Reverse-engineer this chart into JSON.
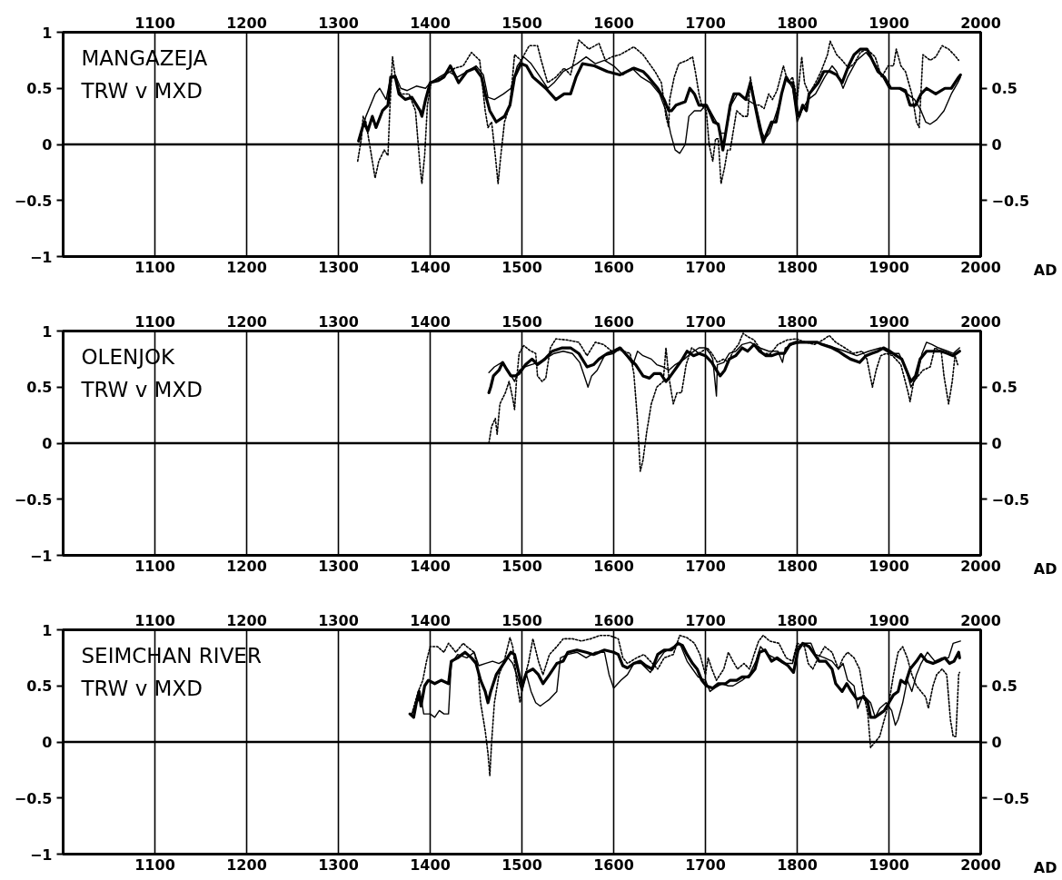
{
  "chart_data": [
    {
      "type": "line",
      "title": "MANGAZEJA",
      "subtitle": "TRW v MXD",
      "xlabel": "AD",
      "xlim": [
        1000,
        2000
      ],
      "xticks": [
        1100,
        1200,
        1300,
        1400,
        1500,
        1600,
        1700,
        1800,
        1900,
        2000
      ],
      "x2lim": [
        1000,
        2000
      ],
      "x2ticks": [
        1100,
        1200,
        1300,
        1400,
        1500,
        1600,
        1700,
        1800,
        1900,
        2000
      ],
      "ylim": [
        -1,
        1
      ],
      "yticks": [
        -1,
        -0.5,
        0,
        0.5,
        1
      ],
      "y2lim": [
        -1,
        1
      ],
      "y2ticks": [
        -0.5,
        0,
        0.5
      ],
      "grid": "x",
      "ref_lines": [
        {
          "axis": "y",
          "value": 0
        }
      ],
      "series": [
        {
          "color": "#000000",
          "line_style": "solid",
          "x": [
            1322,
            1328,
            1332,
            1337,
            1341,
            1348,
            1354,
            1357,
            1362,
            1366,
            1373,
            1380,
            1389,
            1391,
            1395,
            1400,
            1409,
            1415,
            1422,
            1431,
            1440,
            1449,
            1456,
            1460,
            1465,
            1472,
            1481,
            1487,
            1492,
            1499,
            1505,
            1512,
            1519,
            1526,
            1537,
            1546,
            1553,
            1559,
            1566,
            1579,
            1593,
            1607,
            1622,
            1632,
            1638,
            1648,
            1655,
            1660,
            1663,
            1668,
            1678,
            1683,
            1688,
            1693,
            1701,
            1704,
            1709,
            1714,
            1717,
            1719,
            1722,
            1727,
            1731,
            1737,
            1744,
            1749,
            1754,
            1759,
            1763,
            1767,
            1772,
            1777,
            1783,
            1788,
            1792,
            1795,
            1800,
            1802,
            1806,
            1810,
            1813,
            1823,
            1829,
            1836,
            1843,
            1849,
            1856,
            1862,
            1869,
            1876,
            1882,
            1888,
            1895,
            1902,
            1912,
            1918,
            1923,
            1929,
            1935,
            1941,
            1951,
            1961,
            1968,
            1976,
            1978
          ],
          "values": [
            0.03,
            0.2,
            0.12,
            0.25,
            0.15,
            0.3,
            0.35,
            0.6,
            0.6,
            0.45,
            0.4,
            0.42,
            0.3,
            0.25,
            0.4,
            0.55,
            0.57,
            0.6,
            0.7,
            0.55,
            0.65,
            0.68,
            0.6,
            0.45,
            0.3,
            0.2,
            0.25,
            0.35,
            0.6,
            0.72,
            0.7,
            0.6,
            0.55,
            0.5,
            0.4,
            0.45,
            0.45,
            0.6,
            0.72,
            0.7,
            0.65,
            0.62,
            0.68,
            0.65,
            0.6,
            0.5,
            0.4,
            0.3,
            0.3,
            0.35,
            0.38,
            0.5,
            0.45,
            0.35,
            0.35,
            0.3,
            0.2,
            0.18,
            0.05,
            -0.05,
            0.1,
            0.35,
            0.45,
            0.45,
            0.4,
            0.55,
            0.35,
            0.15,
            0.02,
            0.1,
            0.2,
            0.2,
            0.45,
            0.6,
            0.55,
            0.55,
            0.3,
            0.25,
            0.35,
            0.3,
            0.45,
            0.55,
            0.65,
            0.65,
            0.62,
            0.55,
            0.7,
            0.8,
            0.85,
            0.85,
            0.75,
            0.65,
            0.6,
            0.5,
            0.5,
            0.48,
            0.35,
            0.35,
            0.45,
            0.5,
            0.45,
            0.5,
            0.5,
            0.6,
            0.62
          ]
        },
        {
          "color": "#000000",
          "line_style": "solid",
          "x": [
            1323,
            1330,
            1340,
            1345,
            1352,
            1357,
            1362,
            1368,
            1375,
            1385,
            1395,
            1400,
            1410,
            1420,
            1430,
            1440,
            1450,
            1458,
            1463,
            1470,
            1480,
            1488,
            1495,
            1502,
            1510,
            1520,
            1528,
            1535,
            1545,
            1552,
            1560,
            1570,
            1580,
            1590,
            1600,
            1610,
            1620,
            1630,
            1640,
            1650,
            1657,
            1662,
            1667,
            1672,
            1678,
            1682,
            1688,
            1695,
            1700,
            1705,
            1712,
            1717,
            1722,
            1728,
            1735,
            1745,
            1755,
            1762,
            1765,
            1770,
            1780,
            1788,
            1795,
            1800,
            1805,
            1812,
            1820,
            1830,
            1838,
            1843,
            1850,
            1855,
            1865,
            1875,
            1882,
            1890,
            1900,
            1910,
            1920,
            1928,
            1935,
            1940,
            1945,
            1952,
            1960,
            1968,
            1975,
            1978
          ],
          "values": [
            0.05,
            0.25,
            0.45,
            0.5,
            0.4,
            0.6,
            0.62,
            0.5,
            0.48,
            0.52,
            0.5,
            0.55,
            0.6,
            0.65,
            0.6,
            0.65,
            0.7,
            0.62,
            0.42,
            0.4,
            0.45,
            0.5,
            0.7,
            0.78,
            0.72,
            0.6,
            0.5,
            0.55,
            0.65,
            0.68,
            0.72,
            0.78,
            0.72,
            0.75,
            0.7,
            0.62,
            0.68,
            0.6,
            0.55,
            0.45,
            0.3,
            0.1,
            -0.05,
            -0.08,
            0.0,
            0.25,
            0.3,
            0.3,
            0.35,
            0.3,
            0.2,
            0.1,
            0.1,
            0.35,
            0.45,
            0.4,
            0.35,
            0.1,
            0.05,
            0.1,
            0.35,
            0.6,
            0.5,
            0.2,
            0.3,
            0.4,
            0.45,
            0.6,
            0.7,
            0.65,
            0.5,
            0.6,
            0.75,
            0.82,
            0.75,
            0.65,
            0.5,
            0.5,
            0.45,
            0.4,
            0.3,
            0.2,
            0.18,
            0.22,
            0.3,
            0.45,
            0.55,
            0.6
          ]
        },
        {
          "color": "#000000",
          "line_style": "dotted",
          "x": [
            1321,
            1325,
            1327,
            1330,
            1335,
            1340,
            1344,
            1350,
            1354,
            1356,
            1359,
            1362,
            1368,
            1377,
            1384,
            1389,
            1391,
            1394,
            1397,
            1401,
            1413,
            1427,
            1436,
            1445,
            1454,
            1460,
            1463,
            1467,
            1471,
            1474,
            1477,
            1481,
            1487,
            1492,
            1499,
            1508,
            1517,
            1521,
            1528,
            1537,
            1546,
            1553,
            1562,
            1573,
            1584,
            1591,
            1598,
            1607,
            1622,
            1632,
            1645,
            1652,
            1657,
            1660,
            1661,
            1666,
            1671,
            1680,
            1686,
            1689,
            1693,
            1696,
            1701,
            1704,
            1708,
            1711,
            1714,
            1717,
            1721,
            1724,
            1727,
            1731,
            1734,
            1741,
            1746,
            1749,
            1754,
            1759,
            1764,
            1769,
            1773,
            1778,
            1785,
            1790,
            1795,
            1800,
            1805,
            1808,
            1813,
            1820,
            1826,
            1833,
            1836,
            1843,
            1849,
            1856,
            1862,
            1869,
            1876,
            1885,
            1892,
            1899,
            1905,
            1908,
            1913,
            1918,
            1925,
            1930,
            1933,
            1937,
            1945,
            1951,
            1958,
            1965,
            1971,
            1976
          ],
          "values": [
            -0.15,
            0.05,
            0.25,
            0.2,
            -0.05,
            -0.3,
            -0.15,
            -0.05,
            -0.1,
            0.3,
            0.78,
            0.6,
            0.45,
            0.45,
            0.3,
            -0.2,
            -0.35,
            -0.1,
            0.35,
            0.55,
            0.6,
            0.68,
            0.7,
            0.82,
            0.75,
            0.3,
            0.15,
            0.2,
            -0.1,
            -0.35,
            -0.1,
            0.2,
            0.35,
            0.8,
            0.75,
            0.88,
            0.88,
            0.75,
            0.55,
            0.6,
            0.68,
            0.62,
            0.93,
            0.85,
            0.9,
            0.75,
            0.78,
            0.8,
            0.87,
            0.8,
            0.65,
            0.55,
            0.25,
            0.15,
            0.4,
            0.6,
            0.72,
            0.75,
            0.78,
            0.65,
            0.45,
            0.35,
            0.3,
            0.0,
            -0.15,
            0.05,
            0.05,
            -0.35,
            -0.2,
            -0.05,
            -0.05,
            0.15,
            0.3,
            0.25,
            0.25,
            0.6,
            0.35,
            0.35,
            0.32,
            0.45,
            0.4,
            0.48,
            0.7,
            0.55,
            0.6,
            0.4,
            0.78,
            0.55,
            0.45,
            0.55,
            0.65,
            0.8,
            0.92,
            0.8,
            0.75,
            0.68,
            0.72,
            0.82,
            0.85,
            0.78,
            0.6,
            0.7,
            0.7,
            0.85,
            0.7,
            0.65,
            0.45,
            0.2,
            0.15,
            0.8,
            0.75,
            0.78,
            0.88,
            0.85,
            0.8,
            0.75
          ]
        }
      ]
    },
    {
      "type": "line",
      "title": "OLENJOK",
      "subtitle": "TRW v MXD",
      "xlabel": "AD",
      "xlim": [
        1000,
        2000
      ],
      "xticks": [
        1100,
        1200,
        1300,
        1400,
        1500,
        1600,
        1700,
        1800,
        1900,
        2000
      ],
      "x2lim": [
        1000,
        2000
      ],
      "x2ticks": [
        1100,
        1200,
        1300,
        1400,
        1500,
        1600,
        1700,
        1800,
        1900,
        2000
      ],
      "ylim": [
        -1,
        1
      ],
      "yticks": [
        -1,
        -0.5,
        0,
        0.5,
        1
      ],
      "y2lim": [
        -1,
        1
      ],
      "y2ticks": [
        -0.5,
        0,
        0.5
      ],
      "grid": "x",
      "ref_lines": [
        {
          "axis": "y",
          "value": 0
        }
      ],
      "series": [
        {
          "color": "#000000",
          "line_style": "solid",
          "x": [
            1464,
            1466,
            1469,
            1475,
            1479,
            1484,
            1488,
            1493,
            1497,
            1504,
            1511,
            1517,
            1525,
            1533,
            1544,
            1553,
            1562,
            1571,
            1578,
            1584,
            1593,
            1600,
            1607,
            1618,
            1624,
            1632,
            1639,
            1644,
            1651,
            1657,
            1662,
            1669,
            1675,
            1680,
            1687,
            1693,
            1700,
            1707,
            1712,
            1716,
            1721,
            1726,
            1733,
            1740,
            1746,
            1753,
            1759,
            1766,
            1772,
            1779,
            1786,
            1792,
            1799,
            1812,
            1822,
            1827,
            1838,
            1845,
            1852,
            1858,
            1868,
            1875,
            1881,
            1888,
            1894,
            1901,
            1908,
            1914,
            1919,
            1924,
            1929,
            1934,
            1941,
            1947,
            1957,
            1964,
            1970,
            1977
          ],
          "values": [
            0.45,
            0.5,
            0.6,
            0.65,
            0.72,
            0.65,
            0.6,
            0.6,
            0.62,
            0.7,
            0.75,
            0.7,
            0.75,
            0.82,
            0.85,
            0.85,
            0.8,
            0.68,
            0.7,
            0.75,
            0.8,
            0.82,
            0.85,
            0.75,
            0.7,
            0.6,
            0.58,
            0.62,
            0.62,
            0.55,
            0.6,
            0.68,
            0.75,
            0.82,
            0.78,
            0.8,
            0.78,
            0.72,
            0.65,
            0.6,
            0.65,
            0.75,
            0.78,
            0.85,
            0.82,
            0.88,
            0.82,
            0.78,
            0.78,
            0.8,
            0.8,
            0.88,
            0.9,
            0.9,
            0.9,
            0.88,
            0.85,
            0.82,
            0.78,
            0.75,
            0.72,
            0.78,
            0.8,
            0.82,
            0.85,
            0.82,
            0.78,
            0.75,
            0.65,
            0.55,
            0.6,
            0.75,
            0.82,
            0.82,
            0.82,
            0.8,
            0.78,
            0.82
          ]
        },
        {
          "color": "#000000",
          "line_style": "solid",
          "x": [
            1464,
            1470,
            1478,
            1485,
            1492,
            1497,
            1503,
            1510,
            1518,
            1525,
            1535,
            1545,
            1555,
            1563,
            1568,
            1572,
            1576,
            1582,
            1590,
            1600,
            1608,
            1621,
            1626,
            1632,
            1641,
            1647,
            1654,
            1660,
            1667,
            1677,
            1684,
            1693,
            1700,
            1705,
            1708,
            1712,
            1713,
            1720,
            1726,
            1733,
            1740,
            1749,
            1759,
            1769,
            1779,
            1784,
            1787,
            1795,
            1805,
            1822,
            1838,
            1852,
            1865,
            1878,
            1891,
            1901,
            1911,
            1919,
            1924,
            1931,
            1936,
            1941,
            1947,
            1954,
            1964,
            1970,
            1977
          ],
          "values": [
            0.63,
            0.68,
            0.72,
            0.65,
            0.55,
            0.65,
            0.68,
            0.7,
            0.72,
            0.75,
            0.8,
            0.82,
            0.8,
            0.72,
            0.6,
            0.5,
            0.6,
            0.65,
            0.78,
            0.8,
            0.85,
            0.7,
            0.82,
            0.78,
            0.75,
            0.7,
            0.68,
            0.65,
            0.7,
            0.75,
            0.8,
            0.85,
            0.85,
            0.8,
            0.75,
            0.42,
            0.7,
            0.72,
            0.8,
            0.82,
            0.88,
            0.9,
            0.85,
            0.82,
            0.82,
            0.72,
            0.85,
            0.88,
            0.9,
            0.9,
            0.86,
            0.82,
            0.78,
            0.82,
            0.85,
            0.8,
            0.8,
            0.65,
            0.5,
            0.6,
            0.8,
            0.9,
            0.88,
            0.85,
            0.82,
            0.8,
            0.85
          ]
        },
        {
          "color": "#000000",
          "line_style": "dotted",
          "x": [
            1464,
            1467,
            1471,
            1473,
            1476,
            1482,
            1486,
            1490,
            1492,
            1494,
            1497,
            1502,
            1508,
            1515,
            1517,
            1522,
            1526,
            1531,
            1537,
            1549,
            1562,
            1571,
            1580,
            1589,
            1598,
            1607,
            1618,
            1622,
            1626,
            1629,
            1632,
            1636,
            1641,
            1647,
            1654,
            1657,
            1660,
            1665,
            1669,
            1674,
            1679,
            1685,
            1693,
            1702,
            1707,
            1713,
            1720,
            1725,
            1730,
            1736,
            1741,
            1746,
            1753,
            1763,
            1771,
            1779,
            1789,
            1799,
            1809,
            1819,
            1828,
            1835,
            1842,
            1852,
            1861,
            1871,
            1876,
            1882,
            1886,
            1891,
            1897,
            1904,
            1913,
            1921,
            1923,
            1927,
            1932,
            1937,
            1945,
            1950,
            1957,
            1960,
            1965,
            1969,
            1972,
            1975
          ],
          "values": [
            0.0,
            0.15,
            0.22,
            0.08,
            0.35,
            0.45,
            0.55,
            0.4,
            0.3,
            0.55,
            0.8,
            0.87,
            0.83,
            0.8,
            0.6,
            0.55,
            0.58,
            0.85,
            0.93,
            0.92,
            0.9,
            0.78,
            0.9,
            0.88,
            0.82,
            0.83,
            0.8,
            0.62,
            0.2,
            -0.25,
            -0.15,
            0.1,
            0.35,
            0.5,
            0.55,
            0.85,
            0.6,
            0.35,
            0.45,
            0.45,
            0.7,
            0.85,
            0.8,
            0.85,
            0.8,
            0.72,
            0.75,
            0.72,
            0.82,
            0.88,
            0.98,
            0.95,
            0.92,
            0.8,
            0.8,
            0.88,
            0.92,
            0.93,
            0.9,
            0.88,
            0.92,
            0.96,
            0.9,
            0.85,
            0.8,
            0.82,
            0.75,
            0.5,
            0.65,
            0.78,
            0.8,
            0.78,
            0.7,
            0.45,
            0.37,
            0.55,
            0.6,
            0.65,
            0.68,
            0.85,
            0.82,
            0.6,
            0.35,
            0.55,
            0.78,
            0.7
          ]
        }
      ]
    },
    {
      "type": "line",
      "title": "SEIMCHAN RIVER",
      "subtitle": "TRW v MXD",
      "xlabel": "AD",
      "xlim": [
        1000,
        2000
      ],
      "xticks": [
        1100,
        1200,
        1300,
        1400,
        1500,
        1600,
        1700,
        1800,
        1900,
        2000
      ],
      "x2lim": [
        1000,
        2000
      ],
      "x2ticks": [
        1100,
        1200,
        1300,
        1400,
        1500,
        1600,
        1700,
        1800,
        1900,
        2000
      ],
      "ylim": [
        -1,
        1
      ],
      "yticks": [
        -1,
        -0.5,
        0,
        0.5,
        1
      ],
      "y2lim": [
        -1,
        1
      ],
      "y2ticks": [
        -0.5,
        0,
        0.5
      ],
      "grid": "x",
      "ref_lines": [
        {
          "axis": "y",
          "value": 0
        }
      ],
      "series": [
        {
          "color": "#000000",
          "line_style": "solid",
          "x": [
            1378,
            1382,
            1385,
            1388,
            1390,
            1394,
            1398,
            1405,
            1412,
            1420,
            1423,
            1430,
            1438,
            1445,
            1450,
            1455,
            1460,
            1463,
            1466,
            1472,
            1480,
            1488,
            1492,
            1497,
            1500,
            1505,
            1512,
            1518,
            1523,
            1530,
            1538,
            1545,
            1550,
            1560,
            1570,
            1578,
            1590,
            1600,
            1605,
            1610,
            1615,
            1622,
            1629,
            1635,
            1642,
            1648,
            1655,
            1663,
            1670,
            1675,
            1680,
            1686,
            1691,
            1696,
            1701,
            1708,
            1714,
            1722,
            1727,
            1734,
            1740,
            1747,
            1754,
            1759,
            1765,
            1772,
            1778,
            1783,
            1790,
            1796,
            1801,
            1806,
            1813,
            1819,
            1824,
            1831,
            1838,
            1842,
            1849,
            1854,
            1859,
            1865,
            1872,
            1877,
            1880,
            1885,
            1890,
            1895,
            1900,
            1905,
            1910,
            1913,
            1918,
            1923,
            1930,
            1935,
            1941,
            1948,
            1954,
            1961,
            1966,
            1971,
            1976,
            1977
          ],
          "values": [
            0.25,
            0.22,
            0.35,
            0.45,
            0.32,
            0.5,
            0.55,
            0.52,
            0.55,
            0.52,
            0.72,
            0.75,
            0.8,
            0.75,
            0.7,
            0.55,
            0.45,
            0.35,
            0.45,
            0.6,
            0.7,
            0.8,
            0.78,
            0.6,
            0.5,
            0.62,
            0.65,
            0.6,
            0.52,
            0.6,
            0.7,
            0.72,
            0.8,
            0.82,
            0.8,
            0.78,
            0.82,
            0.8,
            0.78,
            0.68,
            0.66,
            0.7,
            0.72,
            0.68,
            0.65,
            0.78,
            0.82,
            0.82,
            0.88,
            0.86,
            0.78,
            0.7,
            0.65,
            0.55,
            0.5,
            0.48,
            0.52,
            0.52,
            0.55,
            0.55,
            0.58,
            0.58,
            0.65,
            0.8,
            0.82,
            0.72,
            0.75,
            0.72,
            0.68,
            0.62,
            0.82,
            0.88,
            0.85,
            0.78,
            0.72,
            0.72,
            0.65,
            0.52,
            0.45,
            0.52,
            0.45,
            0.38,
            0.4,
            0.35,
            0.22,
            0.22,
            0.25,
            0.28,
            0.35,
            0.42,
            0.45,
            0.55,
            0.52,
            0.65,
            0.72,
            0.78,
            0.72,
            0.7,
            0.72,
            0.75,
            0.7,
            0.72,
            0.8,
            0.75
          ]
        },
        {
          "color": "#000000",
          "line_style": "solid",
          "x": [
            1380,
            1385,
            1390,
            1393,
            1400,
            1405,
            1410,
            1415,
            1420,
            1423,
            1430,
            1440,
            1448,
            1453,
            1460,
            1468,
            1475,
            1485,
            1490,
            1495,
            1500,
            1505,
            1510,
            1515,
            1520,
            1525,
            1530,
            1538,
            1542,
            1550,
            1560,
            1570,
            1580,
            1590,
            1595,
            1600,
            1608,
            1615,
            1622,
            1630,
            1640,
            1648,
            1655,
            1665,
            1672,
            1680,
            1686,
            1692,
            1700,
            1705,
            1710,
            1718,
            1725,
            1730,
            1740,
            1748,
            1755,
            1760,
            1768,
            1775,
            1785,
            1795,
            1800,
            1808,
            1815,
            1820,
            1830,
            1838,
            1845,
            1850,
            1855,
            1862,
            1866,
            1872,
            1880,
            1885,
            1890,
            1897,
            1903,
            1907,
            1910,
            1915,
            1920,
            1925,
            1930,
            1935,
            1942,
            1950,
            1958,
            1965,
            1970,
            1978
          ],
          "values": [
            0.25,
            0.35,
            0.4,
            0.25,
            0.25,
            0.22,
            0.28,
            0.25,
            0.25,
            0.7,
            0.78,
            0.75,
            0.8,
            0.68,
            0.7,
            0.72,
            0.7,
            0.75,
            0.7,
            0.58,
            0.45,
            0.6,
            0.45,
            0.35,
            0.32,
            0.35,
            0.38,
            0.45,
            0.75,
            0.78,
            0.8,
            0.75,
            0.8,
            0.8,
            0.6,
            0.48,
            0.55,
            0.6,
            0.7,
            0.7,
            0.62,
            0.72,
            0.8,
            0.85,
            0.88,
            0.72,
            0.65,
            0.58,
            0.55,
            0.45,
            0.48,
            0.52,
            0.5,
            0.5,
            0.55,
            0.6,
            0.72,
            0.85,
            0.78,
            0.75,
            0.7,
            0.7,
            0.85,
            0.88,
            0.88,
            0.78,
            0.75,
            0.72,
            0.65,
            0.7,
            0.55,
            0.5,
            0.3,
            0.42,
            0.35,
            0.22,
            0.3,
            0.35,
            0.28,
            0.15,
            0.2,
            0.35,
            0.55,
            0.45,
            0.6,
            0.7,
            0.8,
            0.72,
            0.75,
            0.75,
            0.88,
            0.9
          ]
        },
        {
          "color": "#000000",
          "line_style": "dotted",
          "x": [
            1380,
            1387,
            1392,
            1396,
            1400,
            1408,
            1415,
            1420,
            1428,
            1436,
            1440,
            1448,
            1452,
            1455,
            1460,
            1463,
            1465,
            1467,
            1470,
            1475,
            1480,
            1487,
            1490,
            1495,
            1498,
            1502,
            1507,
            1512,
            1518,
            1523,
            1530,
            1538,
            1545,
            1555,
            1565,
            1575,
            1585,
            1595,
            1605,
            1610,
            1615,
            1625,
            1633,
            1640,
            1648,
            1655,
            1665,
            1672,
            1680,
            1688,
            1694,
            1700,
            1703,
            1707,
            1712,
            1720,
            1725,
            1730,
            1735,
            1742,
            1748,
            1753,
            1758,
            1763,
            1770,
            1780,
            1788,
            1795,
            1800,
            1808,
            1812,
            1817,
            1823,
            1830,
            1838,
            1845,
            1850,
            1855,
            1862,
            1868,
            1872,
            1877,
            1880,
            1885,
            1890,
            1895,
            1900,
            1905,
            1910,
            1915,
            1920,
            1925,
            1930,
            1935,
            1940,
            1943,
            1948,
            1952,
            1958,
            1963,
            1967,
            1970,
            1973,
            1976,
            1977
          ],
          "values": [
            0.25,
            0.45,
            0.55,
            0.72,
            0.85,
            0.85,
            0.8,
            0.88,
            0.8,
            0.88,
            0.85,
            0.8,
            0.65,
            0.35,
            0.1,
            -0.1,
            -0.3,
            0.0,
            0.35,
            0.6,
            0.7,
            0.93,
            0.85,
            0.5,
            0.35,
            0.55,
            0.7,
            0.92,
            0.72,
            0.6,
            0.78,
            0.85,
            0.92,
            0.92,
            0.9,
            0.92,
            0.95,
            0.95,
            0.92,
            0.75,
            0.7,
            0.75,
            0.78,
            0.72,
            0.65,
            0.75,
            0.78,
            0.95,
            0.93,
            0.88,
            0.78,
            0.6,
            0.75,
            0.65,
            0.55,
            0.65,
            0.8,
            0.72,
            0.65,
            0.7,
            0.65,
            0.78,
            0.9,
            0.95,
            0.9,
            0.88,
            0.75,
            0.72,
            0.88,
            0.85,
            0.7,
            0.65,
            0.75,
            0.85,
            0.8,
            0.65,
            0.75,
            0.8,
            0.75,
            0.65,
            0.45,
            0.25,
            -0.05,
            0.0,
            0.05,
            0.2,
            0.35,
            0.6,
            0.8,
            0.85,
            0.75,
            0.6,
            0.5,
            0.45,
            0.4,
            0.3,
            0.5,
            0.6,
            0.65,
            0.6,
            0.2,
            0.05,
            0.05,
            0.6,
            0.62
          ]
        }
      ]
    }
  ]
}
